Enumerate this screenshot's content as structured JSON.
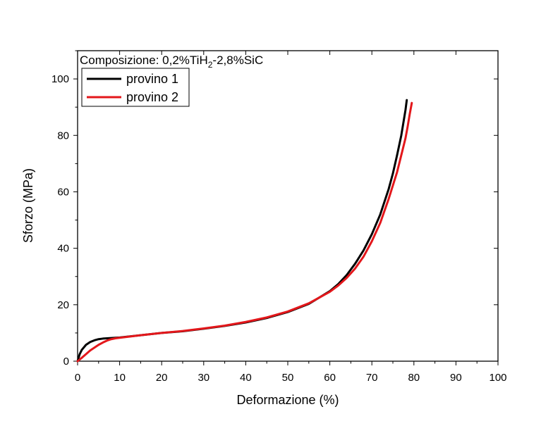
{
  "chart_data": {
    "type": "line",
    "xlabel": "Deformazione (%)",
    "ylabel": "Sforzo (MPa)",
    "xlim": [
      0,
      100
    ],
    "ylim": [
      0,
      110
    ],
    "xticks": [
      0,
      10,
      20,
      30,
      40,
      50,
      60,
      70,
      80,
      90,
      100
    ],
    "yticks": [
      0,
      20,
      40,
      60,
      80,
      100
    ],
    "grid": false,
    "legend_position": "top-left",
    "annotation": {
      "prefix": "Composizione: 0,2%TiH",
      "subscript": "2",
      "suffix": "-2,8%SiC"
    },
    "series": [
      {
        "name": "provino 1",
        "color": "#000000",
        "x": [
          0,
          0.5,
          1,
          2,
          3,
          4,
          5,
          6,
          7,
          8,
          10,
          15,
          20,
          25,
          30,
          35,
          40,
          45,
          50,
          55,
          60,
          62,
          64,
          66,
          68,
          70,
          72,
          74,
          75,
          76,
          77,
          77.5,
          78,
          78.3
        ],
        "y": [
          0,
          2.5,
          4,
          5.8,
          6.8,
          7.4,
          7.8,
          8.0,
          8.1,
          8.2,
          8.4,
          9.2,
          10.0,
          10.6,
          11.5,
          12.5,
          13.7,
          15.3,
          17.4,
          20.3,
          24.8,
          27.3,
          30.5,
          34.5,
          39.2,
          45.0,
          52.0,
          61.0,
          66.5,
          73.0,
          80.0,
          84.5,
          89.0,
          92.5
        ]
      },
      {
        "name": "provino 2",
        "color": "#e3171b",
        "x": [
          0,
          1,
          2,
          3,
          4,
          5,
          6,
          7,
          8,
          9,
          10,
          15,
          20,
          25,
          30,
          35,
          40,
          45,
          50,
          55,
          60,
          62,
          64,
          66,
          68,
          70,
          72,
          74,
          76,
          77,
          78,
          78.5,
          79,
          79.5
        ],
        "y": [
          0,
          1.2,
          2.5,
          3.8,
          4.8,
          5.8,
          6.6,
          7.3,
          7.8,
          8.1,
          8.3,
          9.2,
          10.0,
          10.7,
          11.6,
          12.6,
          13.9,
          15.5,
          17.6,
          20.5,
          24.6,
          26.8,
          29.5,
          32.8,
          37.0,
          42.5,
          49.0,
          57.5,
          67.0,
          73.0,
          79.0,
          83.0,
          87.5,
          91.5
        ]
      }
    ]
  }
}
